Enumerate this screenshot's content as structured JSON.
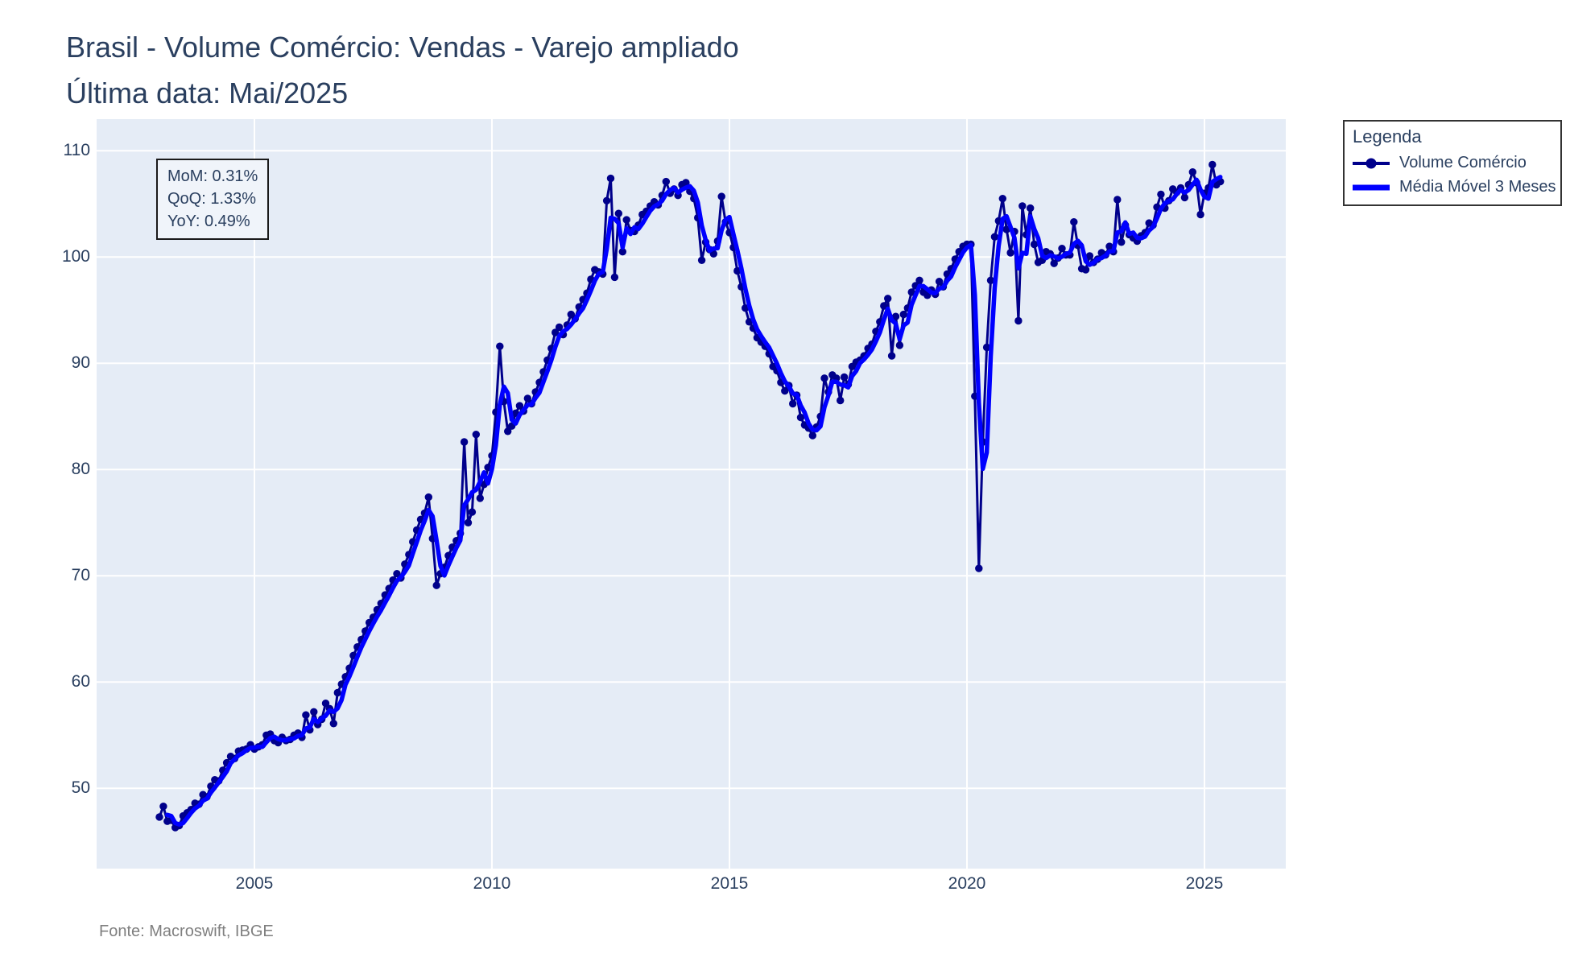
{
  "title": {
    "line1": "Brasil - Volume Comércio: Vendas - Varejo ampliado",
    "line2": "Última data: Mai/2025"
  },
  "stats_box": {
    "mom": "MoM: 0.31%",
    "qoq": "QoQ: 1.33%",
    "yoy": "YoY: 0.49%"
  },
  "legend": {
    "title": "Legenda",
    "entries": [
      {
        "label": "Volume Comércio",
        "color": "#00008B",
        "style": "line-marker"
      },
      {
        "label": "Média Móvel 3 Meses",
        "color": "#0000FF",
        "style": "line"
      }
    ]
  },
  "footer": {
    "source": "Fonte: Macroswift, IBGE"
  },
  "colors": {
    "plot_background": "#E5ECF6",
    "gridline": "#FFFFFF",
    "axis_text": "#2a3f5f",
    "series_main": "#00008B",
    "series_ma": "#0000FF"
  },
  "chart_data": {
    "type": "line",
    "title": "Brasil - Volume Comércio: Vendas - Varejo ampliado",
    "subtitle": "Última data: Mai/2025",
    "frequency": "monthly",
    "x_start": "2003-01",
    "x_end": "2025-05",
    "x_tick_labels": [
      "2005",
      "2010",
      "2015",
      "2020",
      "2025"
    ],
    "x_tick_month_index": [
      24,
      84,
      144,
      204,
      264
    ],
    "y_ticks": [
      50,
      60,
      70,
      80,
      90,
      100,
      110
    ],
    "ylim": [
      42.5,
      113
    ],
    "grid": true,
    "legend_position": "outside-right",
    "series": [
      {
        "name": "Volume Comércio",
        "color": "#00008B",
        "markers": true,
        "values": [
          47.3,
          48.3,
          46.9,
          47.0,
          46.3,
          46.5,
          47.4,
          47.7,
          48.0,
          48.6,
          48.5,
          49.4,
          49.2,
          50.2,
          50.8,
          50.7,
          51.7,
          52.4,
          53.0,
          52.8,
          53.5,
          53.6,
          53.7,
          54.1,
          53.7,
          53.9,
          54.1,
          55.0,
          55.1,
          54.5,
          54.3,
          54.8,
          54.5,
          54.6,
          55.0,
          55.2,
          54.8,
          56.9,
          55.5,
          57.2,
          56.0,
          56.5,
          58.0,
          57.5,
          56.1,
          59.0,
          59.8,
          60.5,
          61.3,
          62.5,
          63.3,
          64.0,
          64.8,
          65.6,
          66.1,
          66.8,
          67.4,
          68.2,
          68.8,
          69.6,
          70.2,
          69.8,
          71.1,
          72.0,
          73.2,
          74.3,
          75.3,
          75.9,
          77.4,
          73.5,
          69.1,
          70.2,
          70.8,
          71.9,
          72.7,
          73.3,
          74.0,
          82.6,
          75.0,
          76.0,
          83.3,
          77.3,
          78.6,
          80.2,
          81.3,
          85.4,
          91.6,
          86.4,
          83.6,
          84.1,
          85.3,
          86.0,
          85.5,
          86.7,
          86.2,
          87.3,
          88.2,
          89.2,
          90.3,
          91.4,
          92.9,
          93.4,
          92.7,
          93.6,
          94.6,
          94.2,
          95.3,
          96.0,
          96.6,
          97.9,
          98.8,
          98.6,
          98.4,
          105.3,
          107.4,
          98.1,
          104.1,
          100.5,
          103.5,
          102.5,
          102.4,
          103.0,
          104.0,
          104.3,
          104.8,
          105.2,
          104.9,
          105.8,
          107.1,
          106.0,
          106.4,
          105.8,
          106.8,
          107.0,
          106.2,
          105.5,
          103.7,
          99.7,
          101.4,
          100.7,
          100.3,
          101.5,
          105.7,
          103.3,
          102.3,
          100.9,
          98.7,
          97.2,
          95.2,
          93.9,
          93.3,
          92.4,
          92.0,
          91.6,
          90.9,
          89.7,
          89.3,
          88.2,
          87.4,
          87.9,
          86.2,
          87.0,
          84.9,
          84.2,
          83.9,
          83.2,
          84.0,
          85.0,
          88.6,
          87.3,
          88.9,
          88.6,
          86.5,
          88.7,
          88.0,
          89.7,
          90.1,
          90.3,
          90.7,
          91.4,
          91.8,
          93.0,
          93.9,
          95.4,
          96.1,
          90.7,
          94.4,
          91.7,
          94.6,
          95.2,
          96.7,
          97.3,
          97.8,
          96.7,
          96.4,
          96.9,
          96.5,
          97.7,
          97.2,
          98.4,
          98.9,
          99.8,
          100.5,
          101.0,
          101.2,
          101.2,
          86.9,
          70.7,
          82.6,
          91.5,
          97.8,
          101.9,
          103.4,
          105.5,
          102.6,
          100.4,
          102.4,
          94.0,
          104.8,
          102.1,
          104.6,
          101.2,
          99.5,
          99.7,
          100.5,
          100.3,
          99.4,
          99.9,
          100.8,
          100.2,
          100.2,
          103.3,
          101.1,
          98.9,
          98.8,
          100.1,
          99.5,
          99.8,
          100.4,
          100.2,
          101.0,
          100.5,
          105.4,
          101.4,
          103.0,
          102.1,
          101.8,
          101.5,
          102.0,
          102.3,
          103.2,
          103.0,
          104.7,
          105.9,
          104.6,
          105.3,
          106.4,
          106.1,
          106.5,
          105.6,
          106.8,
          108.0,
          107.0,
          104.0,
          106.0,
          106.5,
          108.7,
          106.8,
          107.1
        ]
      },
      {
        "name": "Média Móvel 3 Meses",
        "color": "#0000FF",
        "markers": false,
        "derived": "rolling_mean_3_of_first_series"
      }
    ]
  }
}
